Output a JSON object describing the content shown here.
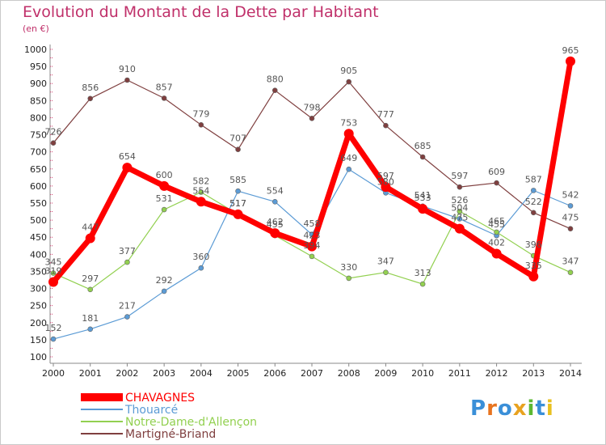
{
  "title": "Evolution du Montant de la Dette par Habitant",
  "subtitle": "(en €)",
  "logo": {
    "letters": [
      "P",
      "r",
      "o",
      "x",
      "i",
      "t",
      "i"
    ],
    "colors": [
      "#3a8fd8",
      "#e8741f",
      "#3a8fd8",
      "#e8a21f",
      "#5cb832",
      "#3a8fd8",
      "#e8c11f"
    ]
  },
  "chart_data": {
    "type": "line",
    "x": [
      "2000",
      "2001",
      "2002",
      "2003",
      "2004",
      "2005",
      "2006",
      "2007",
      "2008",
      "2009",
      "2010",
      "2011",
      "2012",
      "2013",
      "2014"
    ],
    "ylim": [
      100,
      1000
    ],
    "yticks": [
      100,
      150,
      200,
      250,
      300,
      350,
      400,
      450,
      500,
      550,
      600,
      650,
      700,
      750,
      800,
      850,
      900,
      950,
      1000
    ],
    "grid": false,
    "legend_position": "bottom-left",
    "series": [
      {
        "name": "CHAVAGNES",
        "color": "#ff0000",
        "values": [
          319,
          447,
          654,
          600,
          554,
          517,
          462,
          423,
          753,
          597,
          533,
          475,
          402,
          335,
          965
        ],
        "labels": [
          "319",
          "447",
          "654",
          "600",
          "554",
          "517",
          "462",
          "423",
          "753",
          "597",
          "533",
          "475",
          "402",
          "335",
          "965"
        ],
        "thick": true
      },
      {
        "name": "Thouarcé",
        "color": "#5b9bd5",
        "values": [
          152,
          181,
          217,
          292,
          360,
          585,
          554,
          458,
          649,
          580,
          541,
          504,
          455,
          587,
          542
        ],
        "labels": [
          "152",
          "181",
          "217",
          "292",
          "360",
          "585",
          "554",
          "458",
          "649",
          "580",
          "541",
          "504",
          "455",
          "587",
          "542"
        ]
      },
      {
        "name": "Notre-Dame-d'Allençon",
        "color": "#92d050",
        "values": [
          345,
          297,
          377,
          531,
          582,
          517,
          455,
          394,
          330,
          347,
          313,
          526,
          465,
          396,
          347
        ],
        "labels": [
          "345",
          "297",
          "377",
          "531",
          "582",
          "517",
          "455",
          "394",
          "330",
          "347",
          "313",
          "526",
          "465",
          "396",
          "347"
        ]
      },
      {
        "name": "Martigné-Briand",
        "color": "#7f3f3f",
        "values": [
          726,
          856,
          910,
          857,
          779,
          707,
          880,
          798,
          905,
          777,
          685,
          597,
          609,
          522,
          475
        ],
        "labels": [
          "726",
          "856",
          "910",
          "857",
          "779",
          "707",
          "880",
          "798",
          "905",
          "777",
          "685",
          "597",
          "609",
          "522",
          "475"
        ]
      }
    ]
  }
}
